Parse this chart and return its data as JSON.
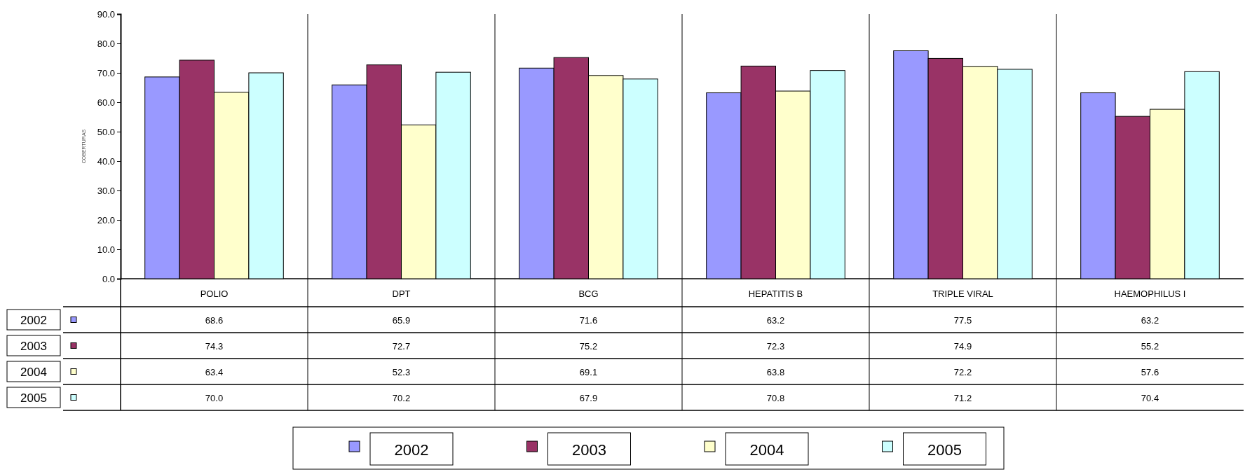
{
  "chart_data": {
    "type": "bar",
    "ylabel": "COBERTURAS",
    "categories": [
      "POLIO",
      "DPT",
      "BCG",
      "HEPATITIS B",
      "TRIPLE VIRAL",
      "HAEMOPHILUS I"
    ],
    "series": [
      {
        "name": "2002",
        "color": "#9999ff",
        "values": [
          68.6,
          65.9,
          71.6,
          63.2,
          77.5,
          63.2
        ],
        "value_labels": [
          "68.6",
          "65.9",
          "71.6",
          "63.2",
          "77.5",
          "63.2"
        ]
      },
      {
        "name": "2003",
        "color": "#993366",
        "values": [
          74.3,
          72.7,
          75.2,
          72.3,
          74.9,
          55.2
        ],
        "value_labels": [
          "74.3",
          "72.7",
          "75.2",
          "72.3",
          "74.9",
          "55.2"
        ]
      },
      {
        "name": "2004",
        "color": "#ffffcc",
        "values": [
          63.4,
          52.3,
          69.1,
          63.8,
          72.2,
          57.6
        ],
        "value_labels": [
          "63.4",
          "52.3",
          "69.1",
          "63.8",
          "72.2",
          "57.6"
        ]
      },
      {
        "name": "2005",
        "color": "#ccffff",
        "values": [
          70.0,
          70.2,
          67.9,
          70.8,
          71.2,
          70.4
        ],
        "value_labels": [
          "70.0",
          "70.2",
          "67.9",
          "70.8",
          "71.2",
          "70.4"
        ]
      }
    ],
    "ylim": [
      0,
      90
    ],
    "yticks": [
      {
        "value": 0,
        "label": "0.0"
      },
      {
        "value": 10,
        "label": "10.0"
      },
      {
        "value": 20,
        "label": "20.0"
      },
      {
        "value": 30,
        "label": "30.0"
      },
      {
        "value": 40,
        "label": "40.0"
      },
      {
        "value": 50,
        "label": "50.0"
      },
      {
        "value": 60,
        "label": "60.0"
      },
      {
        "value": 70,
        "label": "70.0"
      },
      {
        "value": 80,
        "label": "80.0"
      },
      {
        "value": 90,
        "label": "90.0"
      }
    ],
    "grid": false,
    "legend": "bottom"
  }
}
